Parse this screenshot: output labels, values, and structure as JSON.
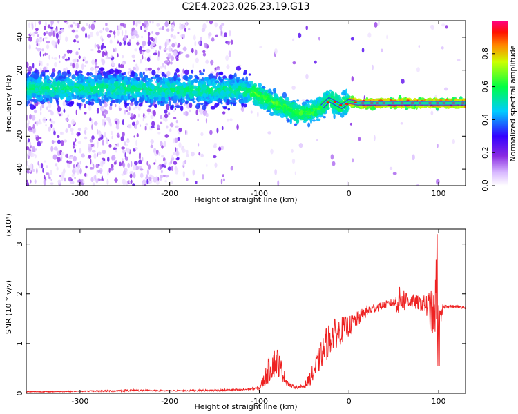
{
  "title": "C2E4.2023.026.23.19.G13",
  "colors": {
    "snr_line": "#ee2222",
    "spectrogram_ridge": "#22ee33",
    "axis": "#000000"
  },
  "chart_data": [
    {
      "type": "heatmap",
      "xlabel": "Height of straight line (km)",
      "ylabel": "Frequency (Hz)",
      "xlim": [
        -360,
        130
      ],
      "ylim": [
        -50,
        50
      ],
      "x_ticks": [
        -300,
        -200,
        -100,
        0,
        100
      ],
      "x_tick_labels": [
        "-300",
        "-200",
        "-100",
        "0",
        "100"
      ],
      "y_ticks": [
        -40,
        -20,
        0,
        20,
        40
      ],
      "y_tick_labels": [
        "-40",
        "-20",
        "0",
        "20",
        "40"
      ],
      "colorbar": {
        "label": "Normalized spectral amplitude",
        "range": [
          0.0,
          1.0
        ],
        "ticks": [
          0.0,
          0.2,
          0.4,
          0.6,
          0.8
        ],
        "tick_labels": [
          "0.0",
          "0.2",
          "0.4",
          "0.6",
          "0.8"
        ],
        "colormap": "rainbow (white-violet-blue-cyan-green-yellow-red-magenta)"
      },
      "ridge": [
        {
          "x": -355,
          "y": 9
        },
        {
          "x": -320,
          "y": 9
        },
        {
          "x": -300,
          "y": 9
        },
        {
          "x": -260,
          "y": 9
        },
        {
          "x": -220,
          "y": 8
        },
        {
          "x": -180,
          "y": 8
        },
        {
          "x": -150,
          "y": 8
        },
        {
          "x": -120,
          "y": 8
        },
        {
          "x": -105,
          "y": 6
        },
        {
          "x": -95,
          "y": 3
        },
        {
          "x": -85,
          "y": 0
        },
        {
          "x": -75,
          "y": -2
        },
        {
          "x": -65,
          "y": -4
        },
        {
          "x": -55,
          "y": -6
        },
        {
          "x": -45,
          "y": -6
        },
        {
          "x": -38,
          "y": -4
        },
        {
          "x": -30,
          "y": -2
        },
        {
          "x": -22,
          "y": 2
        },
        {
          "x": -15,
          "y": 0
        },
        {
          "x": -8,
          "y": -2
        },
        {
          "x": 0,
          "y": 1
        },
        {
          "x": 10,
          "y": 0
        },
        {
          "x": 50,
          "y": 0
        },
        {
          "x": 95,
          "y": 0
        },
        {
          "x": 130,
          "y": 0
        }
      ],
      "grid": false
    },
    {
      "type": "line",
      "xlabel": "Height of straight line (km)",
      "ylabel": "SNR (10 * v/v)",
      "y_multiplier": "(x10⁴)",
      "xlim": [
        -360,
        130
      ],
      "ylim": [
        0,
        3.3
      ],
      "x_ticks": [
        -300,
        -200,
        -100,
        0,
        100
      ],
      "x_tick_labels": [
        "-300",
        "-200",
        "-100",
        "0",
        "100"
      ],
      "y_ticks": [
        0,
        1,
        2,
        3
      ],
      "y_tick_labels": [
        "0",
        "1",
        "2",
        "3"
      ],
      "series": [
        {
          "x": [
            -360,
            -300,
            -260,
            -240,
            -200,
            -150,
            -120,
            -100,
            -95,
            -90,
            -85,
            -80,
            -75,
            -70,
            -65,
            -60,
            -55,
            -50,
            -45,
            -40,
            -35,
            -30,
            -25,
            -20,
            -15,
            -10,
            -5,
            0,
            10,
            20,
            30,
            40,
            50,
            55,
            60,
            65,
            70,
            75,
            80,
            85,
            90,
            95,
            98,
            100,
            102,
            105,
            110,
            120,
            130
          ],
          "y": [
            0.03,
            0.04,
            0.05,
            0.06,
            0.05,
            0.06,
            0.07,
            0.1,
            0.25,
            0.45,
            0.6,
            0.65,
            0.45,
            0.25,
            0.15,
            0.12,
            0.12,
            0.15,
            0.25,
            0.4,
            0.6,
            0.8,
            1.0,
            1.15,
            1.2,
            1.25,
            1.3,
            1.35,
            1.5,
            1.65,
            1.73,
            1.78,
            1.82,
            1.85,
            1.87,
            1.88,
            1.85,
            1.83,
            1.8,
            1.78,
            1.7,
            1.5,
            2.2,
            1.2,
            1.4,
            1.75,
            1.75,
            1.74,
            1.73
          ],
          "noise": [
            0.01,
            0.01,
            0.02,
            0.02,
            0.01,
            0.02,
            0.02,
            0.03,
            0.15,
            0.25,
            0.3,
            0.3,
            0.2,
            0.1,
            0.04,
            0.03,
            0.03,
            0.06,
            0.12,
            0.2,
            0.25,
            0.3,
            0.35,
            0.35,
            0.3,
            0.28,
            0.25,
            0.2,
            0.15,
            0.12,
            0.1,
            0.08,
            0.08,
            0.3,
            0.25,
            0.2,
            0.15,
            0.15,
            0.15,
            0.2,
            0.4,
            0.5,
            0.9,
            0.6,
            0.3,
            0.05,
            0.03,
            0.03,
            0.03
          ]
        }
      ],
      "grid": false
    }
  ]
}
